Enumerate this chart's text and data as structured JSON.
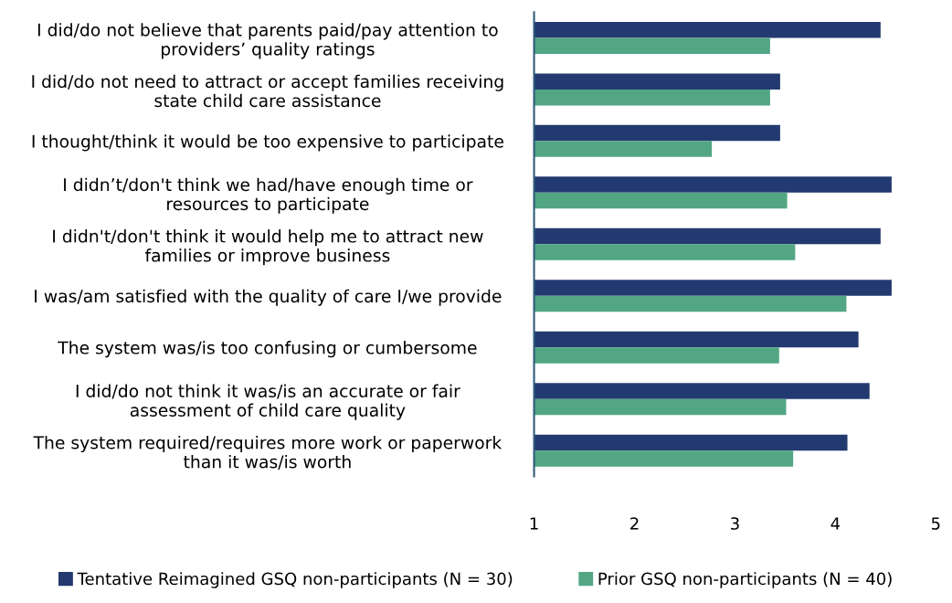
{
  "chart_data": {
    "type": "bar",
    "orientation": "horizontal",
    "categories": [
      "I did/do not believe that parents paid/pay attention to\nproviders’ quality ratings",
      "I did/do not need to attract or accept families receiving\nstate child care assistance",
      "I thought/think it would be too expensive to participate",
      "I didn’t/don't think we had/have enough time or\nresources to participate",
      "I didn't/don't think it would help me to attract new\nfamilies or improve business",
      "I was/am satisfied with the quality of care I/we provide",
      "The system was/is too confusing or cumbersome",
      "I did/do not think it was/is an accurate or fair\nassessment of child care quality",
      "The system required/requires more work or paperwork\nthan it was/is worth"
    ],
    "series": [
      {
        "name": "Tentative Reimagined GSQ non-participants (N = 30)",
        "color": "#233a70",
        "values": [
          4.45,
          3.45,
          3.45,
          4.56,
          4.45,
          4.56,
          4.23,
          4.34,
          4.12
        ]
      },
      {
        "name": "Prior GSQ non-participants (N = 40)",
        "color": "#52a684",
        "values": [
          3.35,
          3.35,
          2.77,
          3.52,
          3.6,
          4.11,
          3.44,
          3.51,
          3.58
        ]
      }
    ],
    "xlim": [
      1,
      5
    ],
    "xticks": [
      1,
      2,
      3,
      4,
      5
    ],
    "grid": false,
    "legend": "bottom"
  }
}
